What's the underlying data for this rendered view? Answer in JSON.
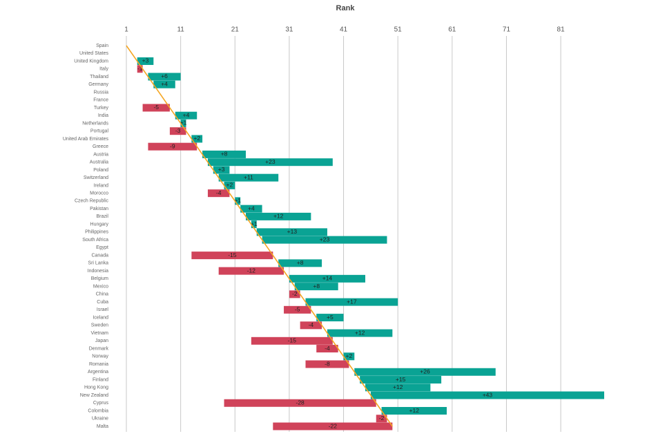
{
  "chart_data": {
    "type": "rank-change-bar",
    "title": "Rank",
    "categories": [
      "Spain",
      "United States",
      "United Kingdom",
      "Italy",
      "Thailand",
      "Germany",
      "Russia",
      "France",
      "Turkey",
      "India",
      "Netherlands",
      "Portugal",
      "United Arab Emirates",
      "Greece",
      "Austria",
      "Australia",
      "Poland",
      "Switzerland",
      "Ireland",
      "Morocco",
      "Czech Republic",
      "Pakistan",
      "Brazil",
      "Hungary",
      "Philippines",
      "South Africa",
      "Egypt",
      "Canada",
      "Sri Lanka",
      "Indonesia",
      "Belgium",
      "Mexico",
      "China",
      "Cuba",
      "Israel",
      "Iceland",
      "Sweden",
      "Vietnam",
      "Japan",
      "Denmark",
      "Norway",
      "Romania",
      "Argentina",
      "Finland",
      "Hong Kong",
      "New Zealand",
      "Cyprus",
      "Colombia",
      "Ukraine",
      "Malta"
    ],
    "values": [
      0,
      0,
      3,
      -1,
      6,
      4,
      0,
      0,
      -5,
      4,
      1,
      -3,
      2,
      -9,
      8,
      23,
      3,
      11,
      2,
      -4,
      1,
      4,
      12,
      1,
      13,
      23,
      0,
      -15,
      8,
      -12,
      14,
      8,
      -2,
      17,
      -5,
      5,
      -4,
      12,
      -15,
      -4,
      2,
      -8,
      26,
      15,
      12,
      43,
      -28,
      12,
      -2,
      -22
    ],
    "value_labels": [
      null,
      null,
      "+3",
      "-1",
      "+6",
      "+4",
      null,
      null,
      "-5",
      "+4",
      "+1",
      "-3",
      "+2",
      "-9",
      "+8",
      "+23",
      "+3",
      "+11",
      "+2",
      "-4",
      "+1",
      "+4",
      "+12",
      "+1",
      "+13",
      "+23",
      null,
      "-15",
      "+8",
      "-12",
      "+14",
      "+8",
      "-2",
      "+17",
      "-5",
      "+5",
      "-4",
      "+12",
      "-15",
      "-4",
      "+2",
      "-8",
      "+26",
      "+15",
      "+12",
      "+43",
      "-28",
      "+12",
      "-2",
      "-22"
    ],
    "positive_color": "#0aa394",
    "negative_color": "#d0435a",
    "line_color": "#f5a623",
    "xlim": [
      1,
      89
    ],
    "xticks": [
      1,
      11,
      21,
      31,
      41,
      51,
      61,
      71,
      81
    ],
    "grid": true
  }
}
